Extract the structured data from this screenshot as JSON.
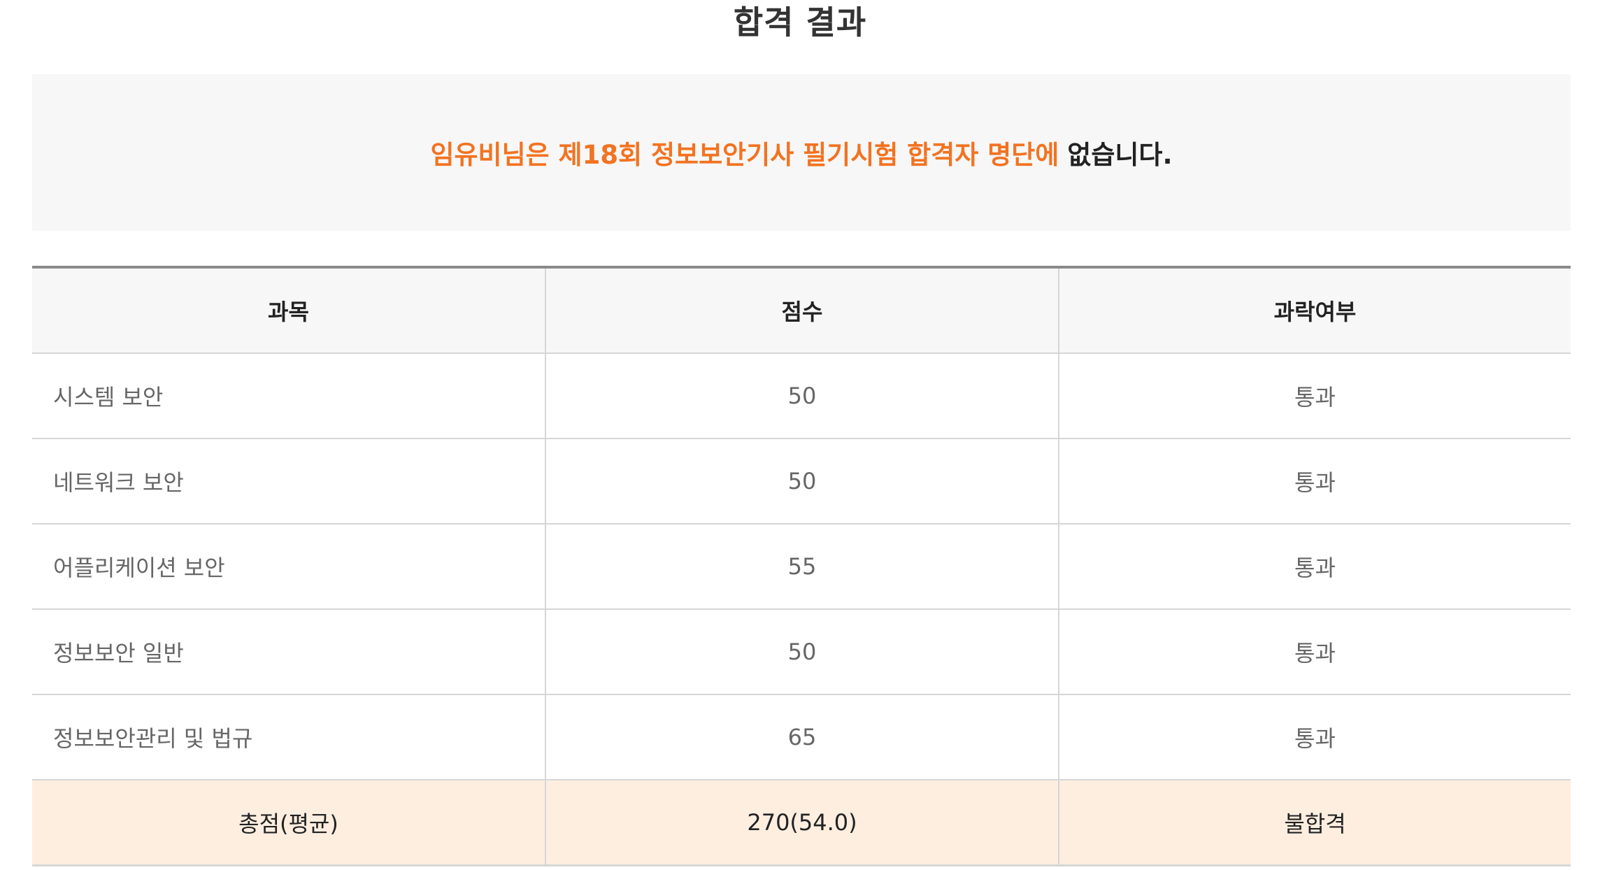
{
  "page_title": "합격 결과",
  "notice": {
    "highlight": "임유비님은 제18회 정보보안기사 필기시험 합격자 명단에",
    "rest": "없습니다."
  },
  "table": {
    "headers": [
      "과목",
      "점수",
      "과락여부"
    ],
    "rows": [
      {
        "subject": "시스템 보안",
        "score": "50",
        "status": "통과"
      },
      {
        "subject": "네트워크 보안",
        "score": "50",
        "status": "통과"
      },
      {
        "subject": "어플리케이션 보안",
        "score": "55",
        "status": "통과"
      },
      {
        "subject": "정보보안 일반",
        "score": "50",
        "status": "통과"
      },
      {
        "subject": "정보보안관리 및 법규",
        "score": "65",
        "status": "통과"
      }
    ],
    "total": {
      "label": "총점(평균)",
      "score": "270(54.0)",
      "result": "불합격"
    }
  },
  "colors": {
    "accent": "#f27321",
    "notice_bg": "#f7f7f7",
    "total_row_bg": "#fdeee0"
  }
}
